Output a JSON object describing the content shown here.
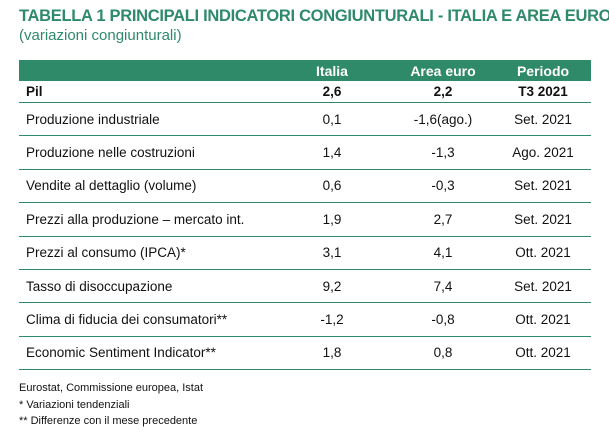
{
  "title": "TABELLA 1  PRINCIPALI INDICATORI CONGIUNTURALI - ITALIA E AREA EURO",
  "subtitle": "(variazioni congiunturali)",
  "table": {
    "headers": [
      "",
      "Italia",
      "Area euro",
      "Periodo"
    ],
    "rows": [
      {
        "label": "Pil",
        "italia": "2,6",
        "area_euro": "2,2",
        "periodo": "T3 2021"
      },
      {
        "label": "Produzione industriale",
        "italia": "0,1",
        "area_euro": "-1,6(ago.)",
        "periodo": "Set. 2021"
      },
      {
        "label": "Produzione nelle costruzioni",
        "italia": "1,4",
        "area_euro": "-1,3",
        "periodo": "Ago. 2021"
      },
      {
        "label": "Vendite al dettaglio (volume)",
        "italia": "0,6",
        "area_euro": "-0,3",
        "periodo": "Set. 2021"
      },
      {
        "label": "Prezzi alla produzione – mercato int.",
        "italia": "1,9",
        "area_euro": "2,7",
        "periodo": "Set. 2021"
      },
      {
        "label": "Prezzi al consumo (IPCA)*",
        "italia": "3,1",
        "area_euro": "4,1",
        "periodo": "Ott. 2021"
      },
      {
        "label": "Tasso di disoccupazione",
        "italia": "9,2",
        "area_euro": "7,4",
        "periodo": "Set. 2021"
      },
      {
        "label": "Clima di fiducia dei consumatori**",
        "italia": "-1,2",
        "area_euro": "-0,8",
        "periodo": "Ott. 2021"
      },
      {
        "label": "Economic Sentiment Indicator**",
        "italia": "1,8",
        "area_euro": "0,8",
        "periodo": "Ott. 2021"
      }
    ]
  },
  "notes": {
    "source": "Eurostat, Commissione europea, Istat",
    "note1": "* Variazioni tendenziali",
    "note2": "** Differenze con il mese precedente"
  },
  "colors": {
    "accent": "#2f8a6a",
    "header_text": "#ffffff",
    "body_text": "#111111"
  }
}
